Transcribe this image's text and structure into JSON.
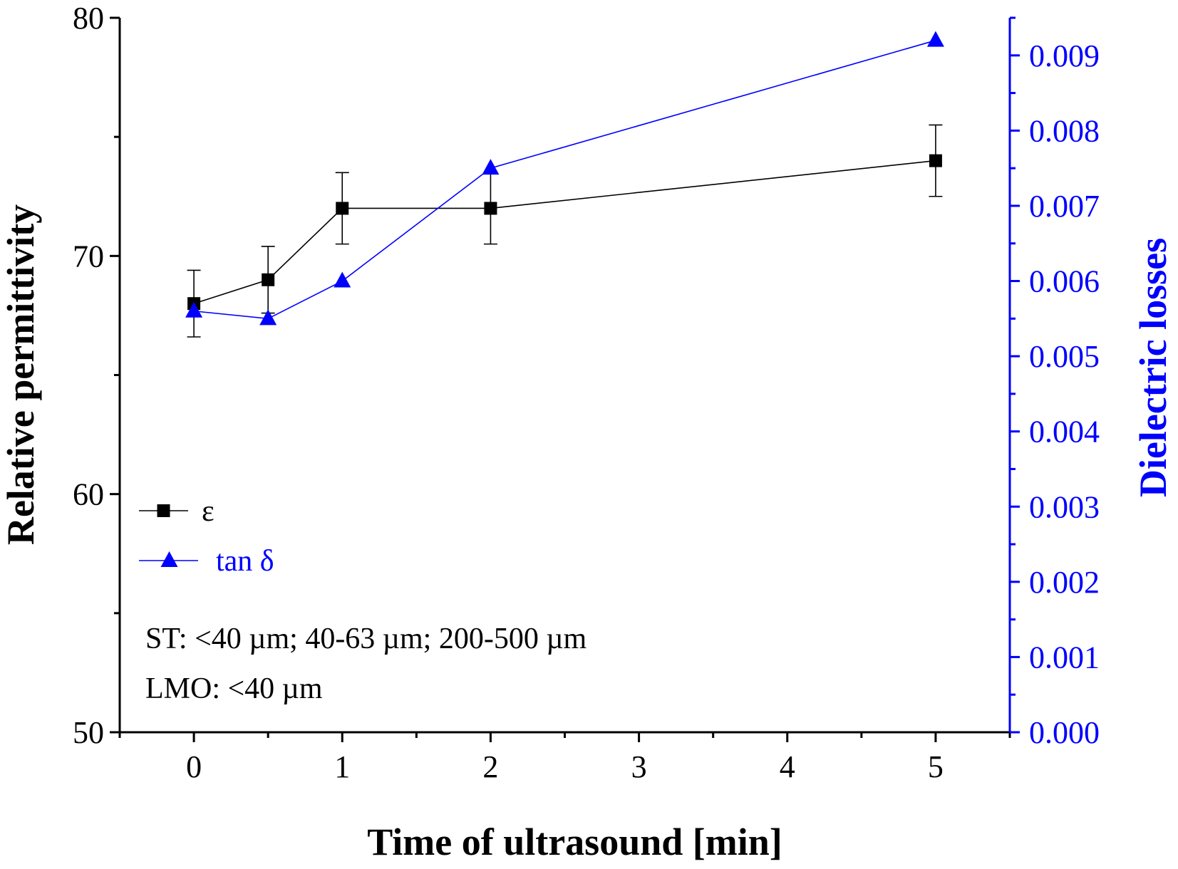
{
  "chart_data": {
    "type": "line",
    "title": "",
    "xlabel": "Time of ultrasound [min]",
    "ylabel": "Relative permittivity",
    "y2label": "Dielectric losses",
    "x_ticks": [
      "0",
      "1",
      "2",
      "3",
      "4",
      "5"
    ],
    "x_tick_values": [
      0,
      1,
      2,
      3,
      4,
      5
    ],
    "xlim": [
      -0.5,
      5.5
    ],
    "ylim": [
      50,
      80
    ],
    "y_ticks": [
      "50",
      "60",
      "70",
      "80"
    ],
    "y_tick_values": [
      50,
      60,
      70,
      80
    ],
    "y2lim": [
      0,
      0.0095
    ],
    "y2_ticks": [
      "0.000",
      "0.001",
      "0.002",
      "0.003",
      "0.004",
      "0.005",
      "0.006",
      "0.007",
      "0.008",
      "0.009"
    ],
    "y2_tick_values": [
      0,
      0.001,
      0.002,
      0.003,
      0.004,
      0.005,
      0.006,
      0.007,
      0.008,
      0.009
    ],
    "series": [
      {
        "name": "ε",
        "axis": "left",
        "marker": "square",
        "color": "#000000",
        "x": [
          0,
          0.5,
          1,
          2,
          5
        ],
        "values": [
          68,
          69,
          72,
          72,
          74
        ],
        "error": [
          1.4,
          1.4,
          1.5,
          1.5,
          1.5
        ]
      },
      {
        "name": "tan δ",
        "axis": "right",
        "marker": "triangle",
        "color": "#0000ff",
        "x": [
          0,
          0.5,
          1,
          2,
          5
        ],
        "values": [
          0.0056,
          0.0055,
          0.006,
          0.0075,
          0.0092
        ]
      }
    ],
    "legend": {
      "placement": "bottom-left",
      "entries": [
        "ε",
        "tan δ"
      ]
    },
    "annotations": [
      "ST: <40 µm; 40-63 µm; 200-500 µm",
      "LMO: <40 µm"
    ]
  }
}
